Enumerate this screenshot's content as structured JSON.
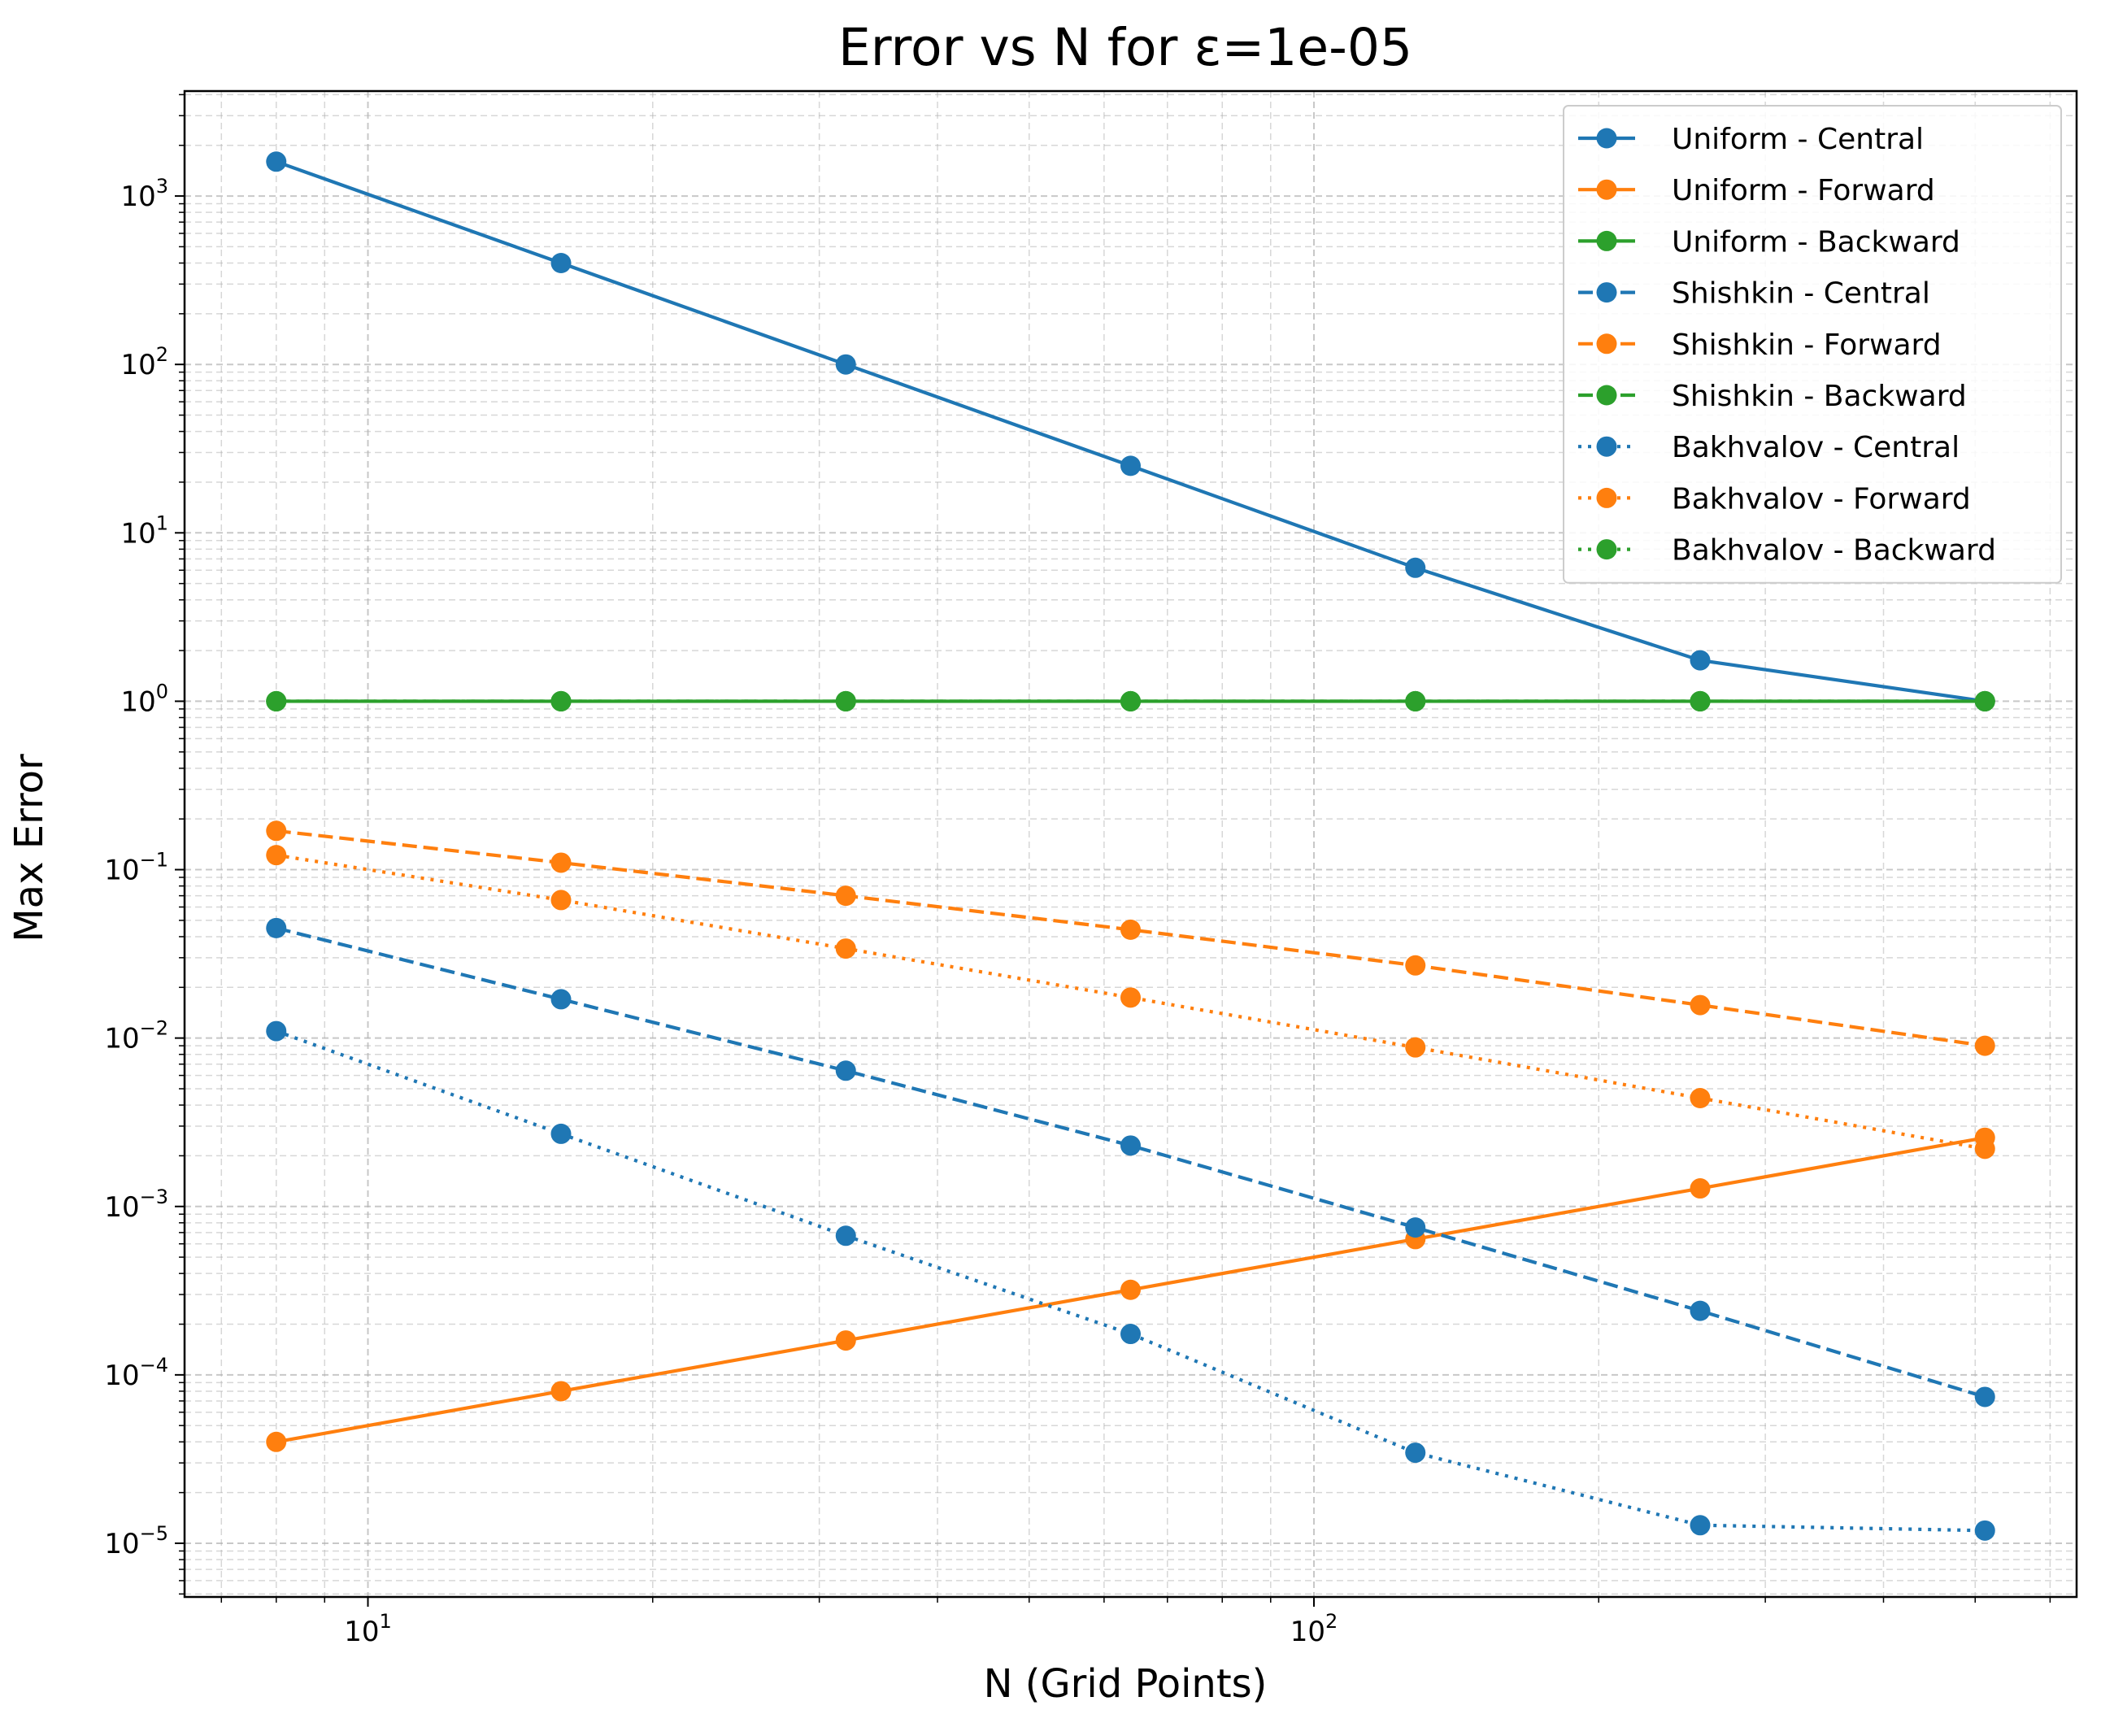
{
  "chart_data": {
    "type": "line",
    "title": "Error vs N for ε=1e-05",
    "xlabel": "N (Grid Points)",
    "ylabel": "Max Error",
    "xscale": "log",
    "yscale": "log",
    "xlim": [
      6.4,
      640
    ],
    "ylim": [
      4.8e-06,
      4200
    ],
    "grid": "both, dashed",
    "legend_position": "upper right",
    "x": [
      8,
      16,
      32,
      64,
      128,
      256,
      512
    ],
    "x_ticks": [
      {
        "value": 10,
        "base": "10",
        "exp": "1"
      },
      {
        "value": 100,
        "base": "10",
        "exp": "2"
      }
    ],
    "y_ticks": [
      {
        "value": 1000,
        "base": "10",
        "exp": "3"
      },
      {
        "value": 100,
        "base": "10",
        "exp": "2"
      },
      {
        "value": 10,
        "base": "10",
        "exp": "1"
      },
      {
        "value": 1,
        "base": "10",
        "exp": "0"
      },
      {
        "value": 0.1,
        "base": "10",
        "exp": "−1"
      },
      {
        "value": 0.01,
        "base": "10",
        "exp": "−2"
      },
      {
        "value": 0.001,
        "base": "10",
        "exp": "−3"
      },
      {
        "value": 0.0001,
        "base": "10",
        "exp": "−4"
      },
      {
        "value": 1e-05,
        "base": "10",
        "exp": "−5"
      }
    ],
    "series": [
      {
        "name": "Uniform - Central",
        "color": "#1f77b4",
        "linestyle": "solid",
        "values": [
          1600,
          400,
          100,
          25,
          6.2,
          1.75,
          1.0
        ]
      },
      {
        "name": "Uniform - Forward",
        "color": "#ff7f0e",
        "linestyle": "solid",
        "values": [
          4e-05,
          8e-05,
          0.00016,
          0.00032,
          0.00064,
          0.00128,
          0.00256
        ]
      },
      {
        "name": "Uniform - Backward",
        "color": "#2ca02c",
        "linestyle": "solid",
        "values": [
          1,
          1,
          1,
          1,
          1,
          1,
          1
        ]
      },
      {
        "name": "Shishkin - Central",
        "color": "#1f77b4",
        "linestyle": "dashed",
        "values": [
          0.045,
          0.017,
          0.0064,
          0.0023,
          0.00075,
          0.00024,
          7.4e-05
        ]
      },
      {
        "name": "Shishkin - Forward",
        "color": "#ff7f0e",
        "linestyle": "dashed",
        "values": [
          0.17,
          0.11,
          0.07,
          0.044,
          0.027,
          0.0157,
          0.009
        ]
      },
      {
        "name": "Shishkin - Backward",
        "color": "#2ca02c",
        "linestyle": "dashed",
        "values": [
          1,
          1,
          1,
          1,
          1,
          1,
          1
        ]
      },
      {
        "name": "Bakhvalov - Central",
        "color": "#1f77b4",
        "linestyle": "dotted",
        "values": [
          0.011,
          0.0027,
          0.00067,
          0.000175,
          3.45e-05,
          1.28e-05,
          1.19e-05
        ]
      },
      {
        "name": "Bakhvalov - Forward",
        "color": "#ff7f0e",
        "linestyle": "dotted",
        "values": [
          0.122,
          0.066,
          0.034,
          0.0174,
          0.0088,
          0.0044,
          0.0022
        ]
      },
      {
        "name": "Bakhvalov - Backward",
        "color": "#2ca02c",
        "linestyle": "dotted",
        "values": [
          1,
          1,
          1,
          1,
          1,
          1,
          1
        ]
      }
    ]
  }
}
